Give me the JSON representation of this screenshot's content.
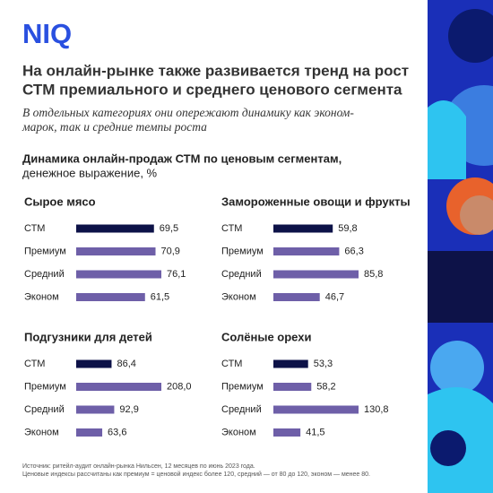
{
  "logo": "NIQ",
  "title": [
    "На онлайн-рынке также развивается тренд на рост",
    "СТМ премиального и среднего ценового сегмента"
  ],
  "subtitle": [
    "В отдельных категориях они опережают динамику как эконом-",
    "марок, так и средние темпы роста"
  ],
  "section_heading": [
    "Динамика онлайн-продаж СТМ по ценовым сегментам,",
    "денежное выражение, %"
  ],
  "source": [
    "Источник: ритейл-аудит онлайн-рынка Нильсен, 12 месяцев по июнь 2023 года.",
    "Ценовые индексы рассчитаны как премиум = ценовой индекс более 120, средний — от 80 до 120, эконом — менее 80."
  ],
  "chart_data": [
    {
      "type": "bar",
      "orientation": "horizontal",
      "title": "Сырое мясо",
      "categories": [
        "СТМ",
        "Премиум",
        "Средний",
        "Эконом"
      ],
      "values": [
        69.5,
        70.9,
        76.1,
        61.5
      ],
      "value_labels": [
        "69,5",
        "70,9",
        "76,1",
        "61,5"
      ],
      "colors": [
        "#0d1248",
        "#6e5fa8",
        "#6e5fa8",
        "#6e5fa8"
      ]
    },
    {
      "type": "bar",
      "orientation": "horizontal",
      "title": "Замороженные овощи и фрукты",
      "categories": [
        "СТМ",
        "Премиум",
        "Средний",
        "Эконом"
      ],
      "values": [
        59.8,
        66.3,
        85.8,
        46.7
      ],
      "value_labels": [
        "59,8",
        "66,3",
        "85,8",
        "46,7"
      ],
      "colors": [
        "#0d1248",
        "#6e5fa8",
        "#6e5fa8",
        "#6e5fa8"
      ]
    },
    {
      "type": "bar",
      "orientation": "horizontal",
      "title": "Подгузники для детей",
      "categories": [
        "СТМ",
        "Премиум",
        "Средний",
        "Эконом"
      ],
      "values": [
        86.4,
        208.0,
        92.9,
        63.6
      ],
      "value_labels": [
        "86,4",
        "208,0",
        "92,9",
        "63,6"
      ],
      "colors": [
        "#0d1248",
        "#6e5fa8",
        "#6e5fa8",
        "#6e5fa8"
      ]
    },
    {
      "type": "bar",
      "orientation": "horizontal",
      "title": "Солёные орехи",
      "categories": [
        "СТМ",
        "Премиум",
        "Средний",
        "Эконом"
      ],
      "values": [
        53.3,
        58.2,
        130.8,
        41.5
      ],
      "value_labels": [
        "53,3",
        "58,2",
        "130,8",
        "41,5"
      ],
      "colors": [
        "#0d1248",
        "#6e5fa8",
        "#6e5fa8",
        "#6e5fa8"
      ]
    }
  ]
}
